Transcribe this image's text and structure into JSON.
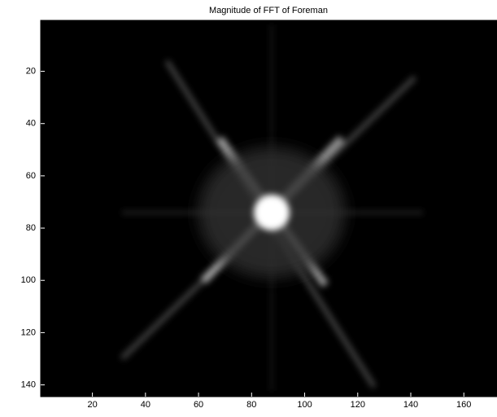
{
  "chart_data": {
    "type": "image",
    "title": "Magnitude of FFT of Foreman",
    "colormap": "gray",
    "xlim": [
      0.5,
      172.5
    ],
    "ylim": [
      144.5,
      0.5
    ],
    "xticks": [
      20,
      40,
      60,
      80,
      100,
      120,
      140,
      160
    ],
    "yticks": [
      20,
      40,
      60,
      80,
      100,
      120,
      140
    ]
  }
}
